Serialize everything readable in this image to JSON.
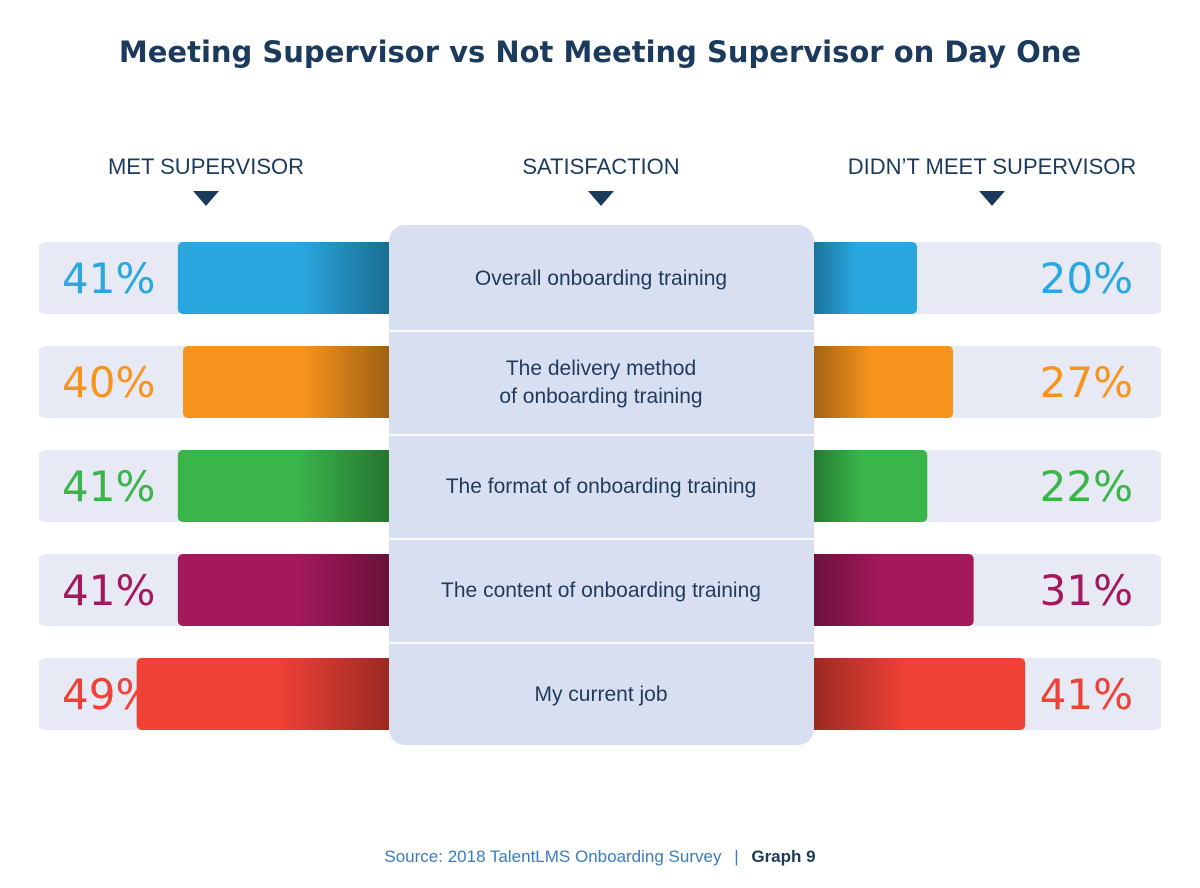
{
  "chart_data": {
    "type": "bar",
    "title": "Meeting Supervisor vs Not Meeting Supervisor on Day One",
    "left_header": "MET SUPERVISOR",
    "center_header": "SATISFACTION",
    "right_header": "DIDN’T MEET SUPERVISOR",
    "categories": [
      [
        "Overall onboarding training"
      ],
      [
        "The delivery method",
        "of onboarding training"
      ],
      [
        "The format of onboarding training"
      ],
      [
        "The content of onboarding training"
      ],
      [
        "My current job"
      ]
    ],
    "series": [
      {
        "name": "MET SUPERVISOR",
        "values": [
          41,
          40,
          41,
          41,
          49
        ],
        "labels": [
          "41%",
          "40%",
          "41%",
          "41%",
          "49%"
        ]
      },
      {
        "name": "DIDN’T MEET SUPERVISOR",
        "values": [
          20,
          27,
          22,
          31,
          41
        ],
        "labels": [
          "20%",
          "27%",
          "22%",
          "31%",
          "41%"
        ]
      }
    ],
    "colors": [
      "#29a8e0",
      "#f7941d",
      "#39b54a",
      "#a3195b",
      "#ef4136"
    ],
    "unit": "%"
  },
  "source": {
    "text": "Source: 2018 TalentLMS Onboarding Survey",
    "separator": "|",
    "graph": "Graph 9"
  }
}
